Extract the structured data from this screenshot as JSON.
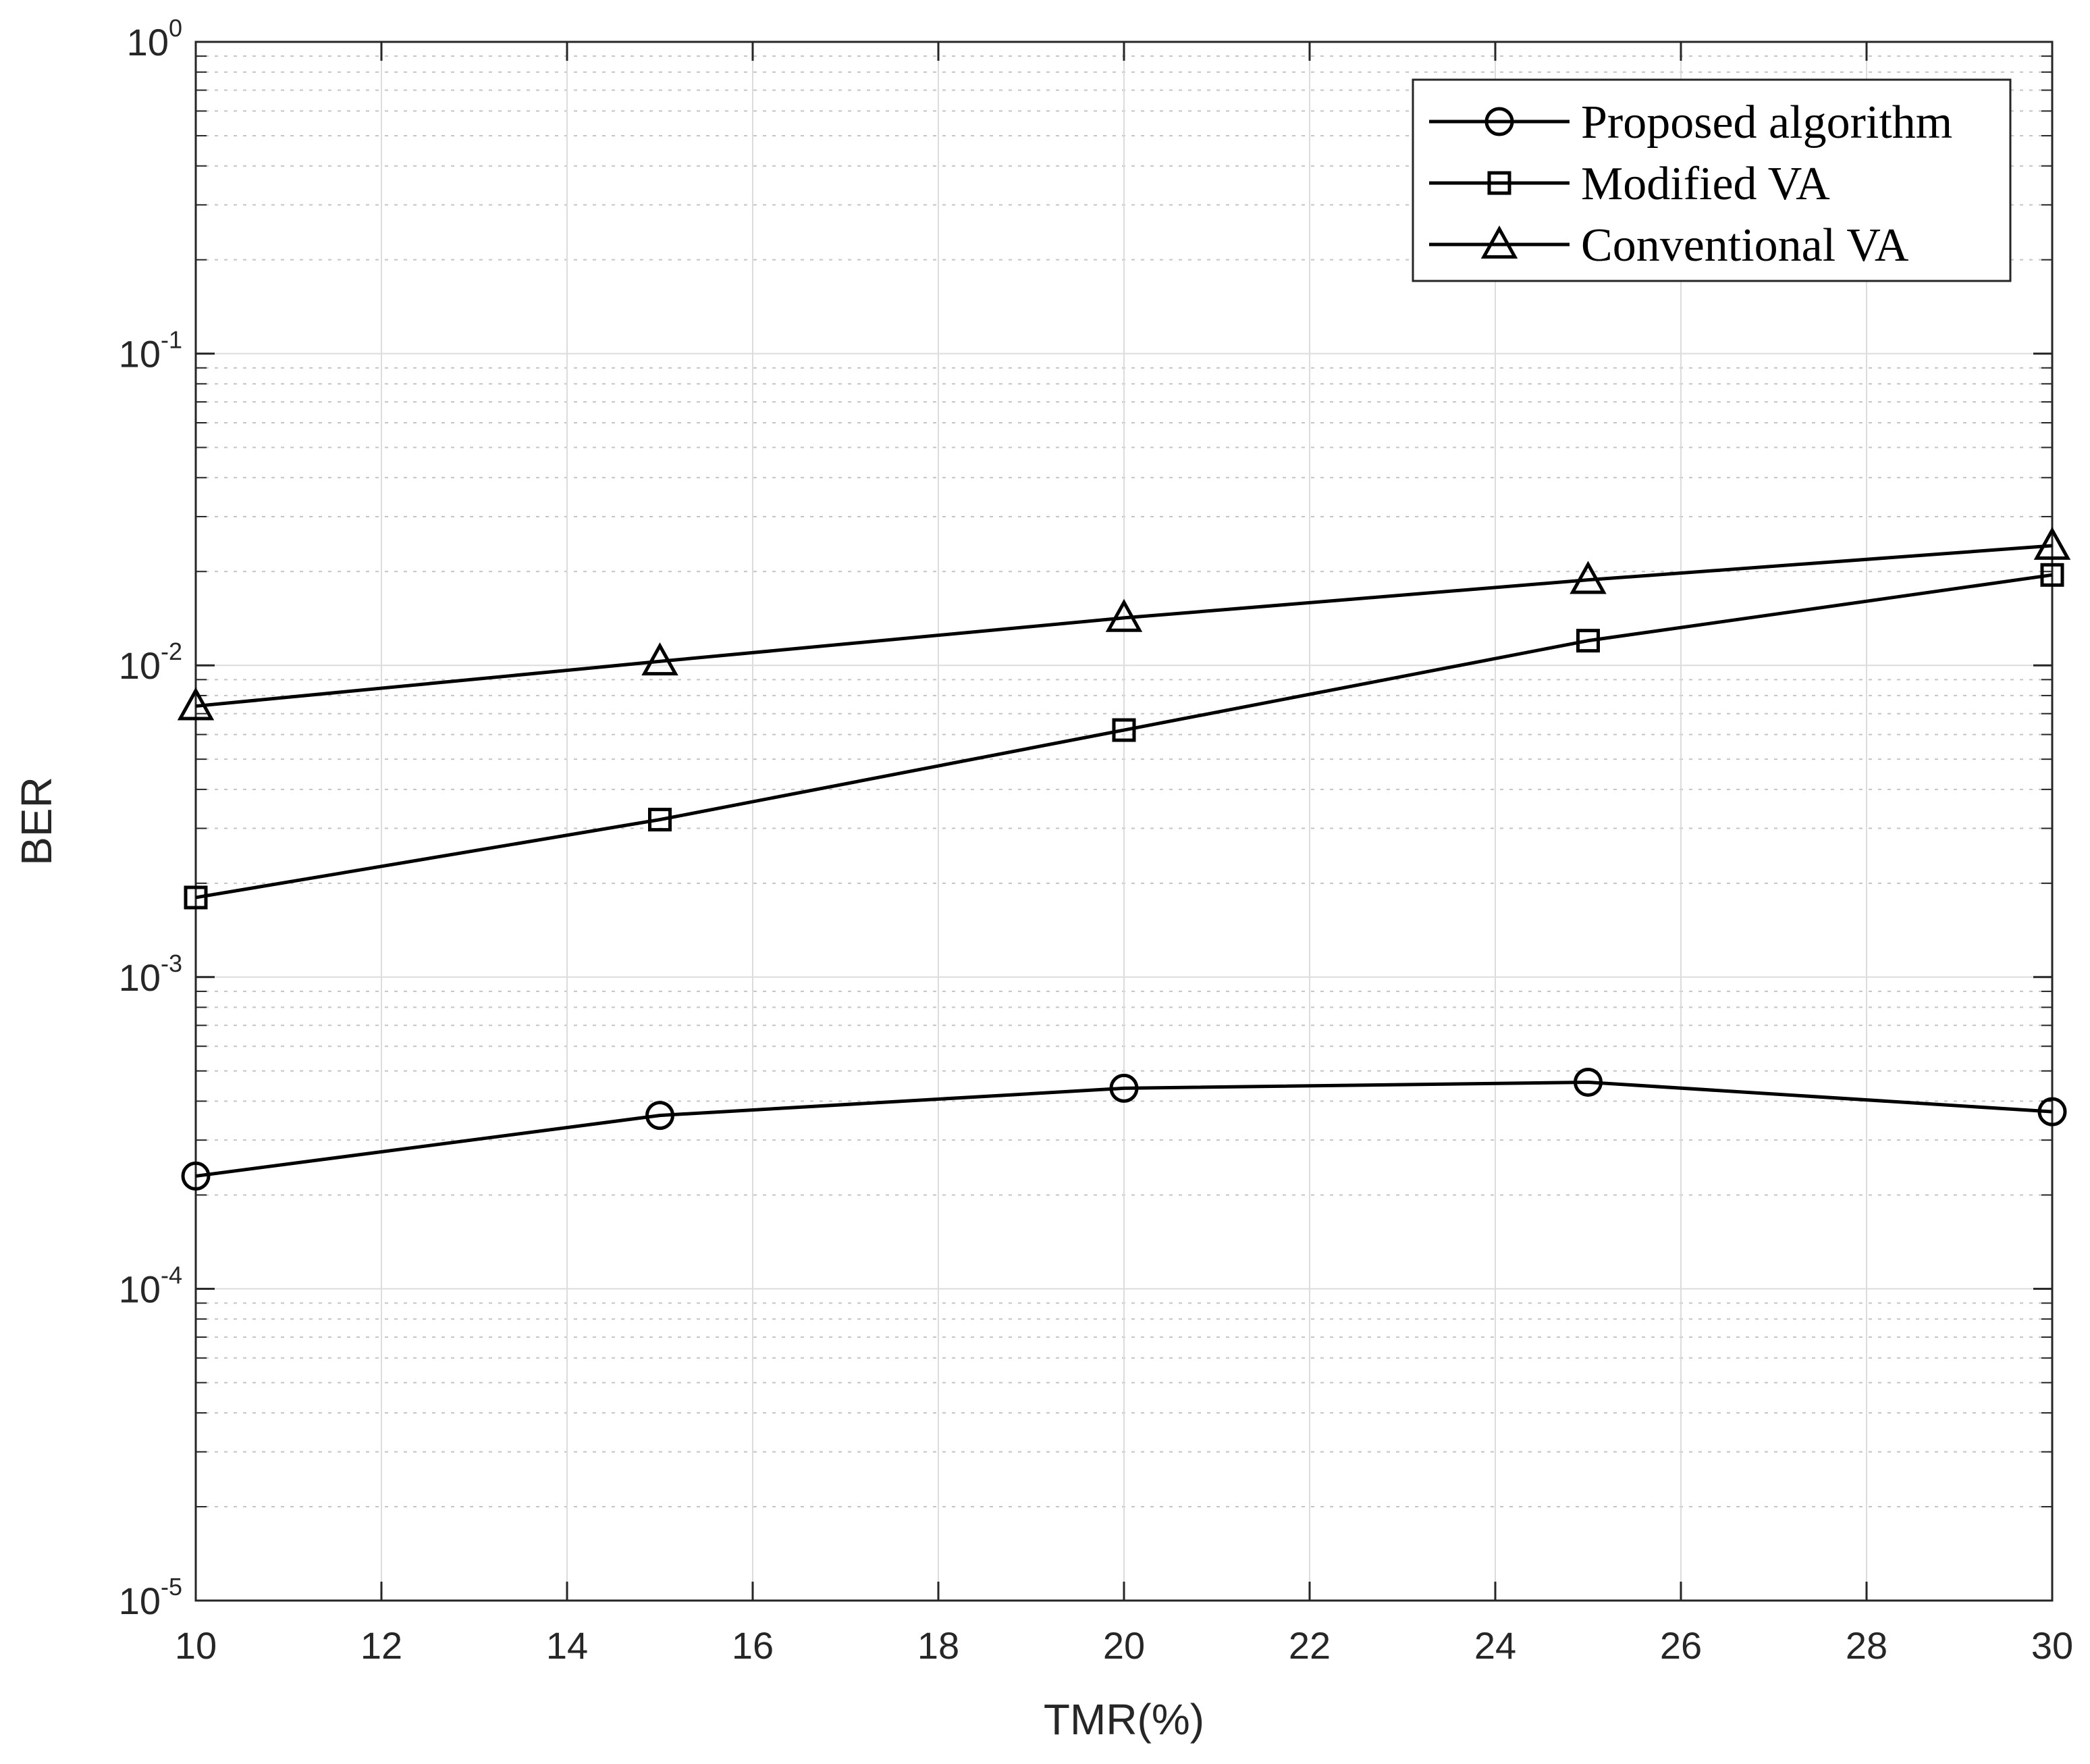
{
  "chart_data": {
    "type": "line",
    "title": "",
    "xlabel": "TMR(%)",
    "ylabel": "BER",
    "xlim": [
      10,
      30
    ],
    "ylim": [
      1e-05,
      1
    ],
    "yscale": "log",
    "grid": true,
    "legend_position": "top-right",
    "x_ticks": [
      10,
      12,
      14,
      16,
      18,
      20,
      22,
      24,
      26,
      28,
      30
    ],
    "x_tick_labels": [
      "10",
      "12",
      "14",
      "16",
      "18",
      "20",
      "22",
      "24",
      "26",
      "28",
      "30"
    ],
    "y_ticks": [
      {
        "value": 1e-05,
        "base": "10",
        "exp": "-5"
      },
      {
        "value": 0.0001,
        "base": "10",
        "exp": "-4"
      },
      {
        "value": 0.001,
        "base": "10",
        "exp": "-3"
      },
      {
        "value": 0.01,
        "base": "10",
        "exp": "-2"
      },
      {
        "value": 0.1,
        "base": "10",
        "exp": "-1"
      },
      {
        "value": 1,
        "base": "10",
        "exp": "0"
      }
    ],
    "x": [
      10,
      15,
      20,
      25,
      30
    ],
    "series": [
      {
        "name": "Proposed algorithm",
        "marker": "circle",
        "color": "#000000",
        "values": [
          0.00023,
          0.00036,
          0.00044,
          0.00046,
          0.00037
        ]
      },
      {
        "name": "Modified VA",
        "marker": "square",
        "color": "#000000",
        "values": [
          0.0018,
          0.0032,
          0.0062,
          0.012,
          0.0195
        ]
      },
      {
        "name": "Conventional VA",
        "marker": "triangle",
        "color": "#000000",
        "values": [
          0.0074,
          0.0103,
          0.0142,
          0.0188,
          0.0242
        ]
      }
    ]
  }
}
